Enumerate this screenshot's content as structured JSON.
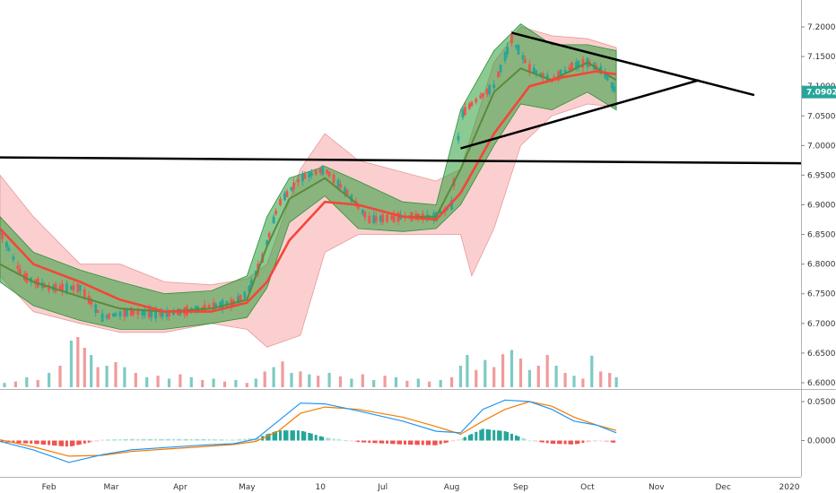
{
  "chart_data": [
    {
      "type": "candlestick",
      "title": "",
      "yaxis": {
        "ticks": [
          "7.2000",
          "7.1500",
          "7.1000",
          "7.0500",
          "7.0000",
          "6.9500",
          "6.9000",
          "6.8500",
          "6.8000",
          "6.7500",
          "6.7000",
          "6.6500",
          "6.6000"
        ],
        "ylim": [
          6.59,
          7.225
        ]
      },
      "xaxis": {
        "ticks": [
          "Feb",
          "Mar",
          "Apr",
          "May",
          "10",
          "Jul",
          "Aug",
          "Sep",
          "Oct",
          "Nov",
          "Dec",
          "2020"
        ],
        "range": [
          "2019-01-10",
          "2020-01-05"
        ]
      },
      "current_price": {
        "label": "7.0902",
        "value": 7.0902,
        "color": "#26a69a"
      },
      "price_path": [
        [
          "2019-01-10",
          6.855
        ],
        [
          "2019-01-20",
          6.78
        ],
        [
          "2019-02-01",
          6.76
        ],
        [
          "2019-02-15",
          6.76
        ],
        [
          "2019-02-25",
          6.71
        ],
        [
          "2019-03-10",
          6.72
        ],
        [
          "2019-03-25",
          6.715
        ],
        [
          "2019-04-10",
          6.725
        ],
        [
          "2019-04-25",
          6.735
        ],
        [
          "2019-05-01",
          6.75
        ],
        [
          "2019-05-08",
          6.81
        ],
        [
          "2019-05-15",
          6.9
        ],
        [
          "2019-05-25",
          6.945
        ],
        [
          "2019-06-05",
          6.96
        ],
        [
          "2019-06-15",
          6.92
        ],
        [
          "2019-06-25",
          6.875
        ],
        [
          "2019-07-10",
          6.88
        ],
        [
          "2019-07-25",
          6.88
        ],
        [
          "2019-08-01",
          6.9
        ],
        [
          "2019-08-05",
          7.05
        ],
        [
          "2019-08-10",
          7.07
        ],
        [
          "2019-08-20",
          7.1
        ],
        [
          "2019-08-28",
          7.18
        ],
        [
          "2019-09-05",
          7.13
        ],
        [
          "2019-09-15",
          7.11
        ],
        [
          "2019-09-25",
          7.135
        ],
        [
          "2019-10-01",
          7.14
        ],
        [
          "2019-10-08",
          7.125
        ],
        [
          "2019-10-14",
          7.09
        ]
      ],
      "sma_red": [
        [
          "2019-01-10",
          6.86
        ],
        [
          "2019-01-25",
          6.8
        ],
        [
          "2019-02-15",
          6.77
        ],
        [
          "2019-03-05",
          6.74
        ],
        [
          "2019-03-25",
          6.72
        ],
        [
          "2019-04-15",
          6.72
        ],
        [
          "2019-05-01",
          6.735
        ],
        [
          "2019-05-10",
          6.77
        ],
        [
          "2019-05-20",
          6.84
        ],
        [
          "2019-06-05",
          6.905
        ],
        [
          "2019-06-20",
          6.9
        ],
        [
          "2019-07-10",
          6.88
        ],
        [
          "2019-07-25",
          6.875
        ],
        [
          "2019-08-05",
          6.92
        ],
        [
          "2019-08-20",
          7.02
        ],
        [
          "2019-09-05",
          7.1
        ],
        [
          "2019-09-20",
          7.115
        ],
        [
          "2019-10-05",
          7.125
        ],
        [
          "2019-10-14",
          7.12
        ]
      ],
      "ema_green": [
        [
          "2019-01-10",
          6.8
        ],
        [
          "2019-01-25",
          6.77
        ],
        [
          "2019-02-15",
          6.745
        ],
        [
          "2019-03-05",
          6.725
        ],
        [
          "2019-03-25",
          6.72
        ],
        [
          "2019-04-15",
          6.725
        ],
        [
          "2019-05-01",
          6.74
        ],
        [
          "2019-05-10",
          6.83
        ],
        [
          "2019-05-20",
          6.91
        ],
        [
          "2019-06-05",
          6.945
        ],
        [
          "2019-06-20",
          6.9
        ],
        [
          "2019-07-10",
          6.88
        ],
        [
          "2019-07-25",
          6.88
        ],
        [
          "2019-08-05",
          6.96
        ],
        [
          "2019-08-20",
          7.09
        ],
        [
          "2019-09-01",
          7.13
        ],
        [
          "2019-09-15",
          7.11
        ],
        [
          "2019-10-01",
          7.14
        ],
        [
          "2019-10-14",
          7.11
        ]
      ],
      "bb_green_upper": [
        [
          "2019-01-10",
          6.88
        ],
        [
          "2019-01-25",
          6.82
        ],
        [
          "2019-02-15",
          6.79
        ],
        [
          "2019-03-05",
          6.77
        ],
        [
          "2019-03-25",
          6.75
        ],
        [
          "2019-04-15",
          6.755
        ],
        [
          "2019-05-01",
          6.78
        ],
        [
          "2019-05-10",
          6.88
        ],
        [
          "2019-05-20",
          6.945
        ],
        [
          "2019-06-05",
          6.965
        ],
        [
          "2019-06-20",
          6.94
        ],
        [
          "2019-07-10",
          6.905
        ],
        [
          "2019-07-25",
          6.9
        ],
        [
          "2019-08-05",
          7.06
        ],
        [
          "2019-08-20",
          7.16
        ],
        [
          "2019-09-01",
          7.205
        ],
        [
          "2019-09-15",
          7.17
        ],
        [
          "2019-10-01",
          7.17
        ],
        [
          "2019-10-14",
          7.16
        ]
      ],
      "bb_green_lower": [
        [
          "2019-01-10",
          6.77
        ],
        [
          "2019-01-25",
          6.73
        ],
        [
          "2019-02-15",
          6.705
        ],
        [
          "2019-03-05",
          6.69
        ],
        [
          "2019-03-25",
          6.69
        ],
        [
          "2019-04-15",
          6.7
        ],
        [
          "2019-05-01",
          6.71
        ],
        [
          "2019-05-10",
          6.76
        ],
        [
          "2019-05-20",
          6.87
        ],
        [
          "2019-06-05",
          6.915
        ],
        [
          "2019-06-20",
          6.86
        ],
        [
          "2019-07-10",
          6.855
        ],
        [
          "2019-07-25",
          6.86
        ],
        [
          "2019-08-05",
          6.9
        ],
        [
          "2019-08-20",
          7.0
        ],
        [
          "2019-09-01",
          7.07
        ],
        [
          "2019-09-15",
          7.06
        ],
        [
          "2019-10-01",
          7.09
        ],
        [
          "2019-10-14",
          7.06
        ]
      ],
      "bb_red_upper": [
        [
          "2019-01-10",
          6.95
        ],
        [
          "2019-01-25",
          6.88
        ],
        [
          "2019-02-15",
          6.8
        ],
        [
          "2019-03-05",
          6.8
        ],
        [
          "2019-03-25",
          6.77
        ],
        [
          "2019-04-15",
          6.765
        ],
        [
          "2019-05-01",
          6.775
        ],
        [
          "2019-05-10",
          6.8
        ],
        [
          "2019-05-25",
          6.96
        ],
        [
          "2019-06-05",
          7.02
        ],
        [
          "2019-06-20",
          6.975
        ],
        [
          "2019-07-10",
          6.955
        ],
        [
          "2019-07-25",
          6.94
        ],
        [
          "2019-08-05",
          6.96
        ],
        [
          "2019-08-20",
          7.14
        ],
        [
          "2019-09-01",
          7.2
        ],
        [
          "2019-09-15",
          7.185
        ],
        [
          "2019-10-01",
          7.18
        ],
        [
          "2019-10-14",
          7.165
        ]
      ],
      "bb_red_lower": [
        [
          "2019-01-10",
          6.78
        ],
        [
          "2019-01-25",
          6.72
        ],
        [
          "2019-02-15",
          6.7
        ],
        [
          "2019-03-05",
          6.685
        ],
        [
          "2019-03-25",
          6.685
        ],
        [
          "2019-04-15",
          6.7
        ],
        [
          "2019-05-01",
          6.69
        ],
        [
          "2019-05-10",
          6.66
        ],
        [
          "2019-05-25",
          6.68
        ],
        [
          "2019-06-05",
          6.82
        ],
        [
          "2019-06-20",
          6.85
        ],
        [
          "2019-07-10",
          6.85
        ],
        [
          "2019-07-25",
          6.85
        ],
        [
          "2019-08-05",
          6.85
        ],
        [
          "2019-08-10",
          6.78
        ],
        [
          "2019-08-20",
          6.86
        ],
        [
          "2019-09-01",
          7.0
        ],
        [
          "2019-09-15",
          7.05
        ],
        [
          "2019-10-01",
          7.07
        ],
        [
          "2019-10-14",
          7.065
        ]
      ],
      "trendlines": [
        {
          "name": "horizontal-support",
          "points": [
            [
              "2019-01-10",
              6.98
            ],
            [
              "2020-01-05",
              6.97
            ]
          ]
        },
        {
          "name": "upper-triangle",
          "points": [
            [
              "2019-08-28",
              7.19
            ],
            [
              "2019-12-15",
              7.085
            ]
          ]
        },
        {
          "name": "lower-triangle",
          "points": [
            [
              "2019-08-05",
              6.995
            ],
            [
              "2019-11-20",
              7.11
            ]
          ]
        }
      ],
      "volume": [
        [
          "2019-01-12",
          0.06,
          "g"
        ],
        [
          "2019-01-17",
          0.08,
          "r"
        ],
        [
          "2019-01-22",
          0.14,
          "g"
        ],
        [
          "2019-01-27",
          0.1,
          "r"
        ],
        [
          "2019-02-01",
          0.2,
          "g"
        ],
        [
          "2019-02-06",
          0.3,
          "r"
        ],
        [
          "2019-02-11",
          0.65,
          "g"
        ],
        [
          "2019-02-14",
          0.7,
          "r"
        ],
        [
          "2019-02-17",
          0.55,
          "r"
        ],
        [
          "2019-02-20",
          0.45,
          "g"
        ],
        [
          "2019-02-23",
          0.28,
          "r"
        ],
        [
          "2019-02-27",
          0.3,
          "g"
        ],
        [
          "2019-03-03",
          0.35,
          "r"
        ],
        [
          "2019-03-07",
          0.28,
          "g"
        ],
        [
          "2019-03-12",
          0.2,
          "r"
        ],
        [
          "2019-03-17",
          0.14,
          "g"
        ],
        [
          "2019-03-22",
          0.16,
          "r"
        ],
        [
          "2019-03-27",
          0.12,
          "g"
        ],
        [
          "2019-04-01",
          0.18,
          "r"
        ],
        [
          "2019-04-06",
          0.14,
          "g"
        ],
        [
          "2019-04-11",
          0.1,
          "r"
        ],
        [
          "2019-04-16",
          0.12,
          "g"
        ],
        [
          "2019-04-21",
          0.08,
          "r"
        ],
        [
          "2019-04-26",
          0.1,
          "g"
        ],
        [
          "2019-05-01",
          0.06,
          "r"
        ],
        [
          "2019-05-05",
          0.12,
          "g"
        ],
        [
          "2019-05-09",
          0.22,
          "r"
        ],
        [
          "2019-05-13",
          0.28,
          "g"
        ],
        [
          "2019-05-17",
          0.36,
          "r"
        ],
        [
          "2019-05-21",
          0.2,
          "g"
        ],
        [
          "2019-05-25",
          0.22,
          "r"
        ],
        [
          "2019-05-29",
          0.18,
          "g"
        ],
        [
          "2019-06-02",
          0.16,
          "r"
        ],
        [
          "2019-06-07",
          0.2,
          "g"
        ],
        [
          "2019-06-12",
          0.15,
          "r"
        ],
        [
          "2019-06-17",
          0.12,
          "g"
        ],
        [
          "2019-06-22",
          0.18,
          "r"
        ],
        [
          "2019-06-27",
          0.1,
          "g"
        ],
        [
          "2019-07-02",
          0.16,
          "r"
        ],
        [
          "2019-07-07",
          0.14,
          "g"
        ],
        [
          "2019-07-12",
          0.09,
          "r"
        ],
        [
          "2019-07-17",
          0.12,
          "g"
        ],
        [
          "2019-07-22",
          0.08,
          "r"
        ],
        [
          "2019-07-27",
          0.1,
          "g"
        ],
        [
          "2019-08-01",
          0.14,
          "r"
        ],
        [
          "2019-08-05",
          0.3,
          "g"
        ],
        [
          "2019-08-08",
          0.45,
          "g"
        ],
        [
          "2019-08-12",
          0.24,
          "r"
        ],
        [
          "2019-08-16",
          0.38,
          "g"
        ],
        [
          "2019-08-20",
          0.28,
          "r"
        ],
        [
          "2019-08-24",
          0.46,
          "r"
        ],
        [
          "2019-08-28",
          0.52,
          "g"
        ],
        [
          "2019-09-01",
          0.4,
          "r"
        ],
        [
          "2019-09-05",
          0.24,
          "g"
        ],
        [
          "2019-09-09",
          0.3,
          "r"
        ],
        [
          "2019-09-13",
          0.45,
          "r"
        ],
        [
          "2019-09-17",
          0.3,
          "g"
        ],
        [
          "2019-09-21",
          0.2,
          "r"
        ],
        [
          "2019-09-25",
          0.16,
          "g"
        ],
        [
          "2019-09-29",
          0.12,
          "r"
        ],
        [
          "2019-10-03",
          0.44,
          "g"
        ],
        [
          "2019-10-07",
          0.22,
          "r"
        ],
        [
          "2019-10-11",
          0.2,
          "r"
        ],
        [
          "2019-10-14",
          0.14,
          "g"
        ]
      ]
    },
    {
      "type": "macd",
      "yaxis": {
        "ticks": [
          "0.0500",
          "0.0000"
        ],
        "ylim": [
          -0.032,
          0.058
        ]
      },
      "macd_line": [
        [
          "2019-01-10",
          -0.001
        ],
        [
          "2019-01-25",
          -0.012
        ],
        [
          "2019-02-10",
          -0.028
        ],
        [
          "2019-02-25",
          -0.018
        ],
        [
          "2019-03-10",
          -0.012
        ],
        [
          "2019-03-25",
          -0.009
        ],
        [
          "2019-04-10",
          -0.006
        ],
        [
          "2019-04-25",
          -0.004
        ],
        [
          "2019-05-05",
          0.002
        ],
        [
          "2019-05-15",
          0.025
        ],
        [
          "2019-05-25",
          0.048
        ],
        [
          "2019-06-05",
          0.047
        ],
        [
          "2019-06-20",
          0.038
        ],
        [
          "2019-07-10",
          0.025
        ],
        [
          "2019-07-25",
          0.012
        ],
        [
          "2019-08-05",
          0.01
        ],
        [
          "2019-08-15",
          0.04
        ],
        [
          "2019-08-25",
          0.052
        ],
        [
          "2019-09-05",
          0.05
        ],
        [
          "2019-09-15",
          0.04
        ],
        [
          "2019-09-25",
          0.025
        ],
        [
          "2019-10-05",
          0.02
        ],
        [
          "2019-10-14",
          0.01
        ]
      ],
      "signal_line": [
        [
          "2019-01-10",
          0.001
        ],
        [
          "2019-01-25",
          -0.008
        ],
        [
          "2019-02-10",
          -0.02
        ],
        [
          "2019-02-25",
          -0.019
        ],
        [
          "2019-03-10",
          -0.014
        ],
        [
          "2019-03-25",
          -0.011
        ],
        [
          "2019-04-10",
          -0.008
        ],
        [
          "2019-04-25",
          -0.005
        ],
        [
          "2019-05-05",
          -0.001
        ],
        [
          "2019-05-15",
          0.012
        ],
        [
          "2019-05-25",
          0.035
        ],
        [
          "2019-06-05",
          0.043
        ],
        [
          "2019-06-20",
          0.04
        ],
        [
          "2019-07-10",
          0.03
        ],
        [
          "2019-07-25",
          0.018
        ],
        [
          "2019-08-05",
          0.008
        ],
        [
          "2019-08-15",
          0.025
        ],
        [
          "2019-08-25",
          0.04
        ],
        [
          "2019-09-05",
          0.05
        ],
        [
          "2019-09-15",
          0.044
        ],
        [
          "2019-09-25",
          0.03
        ],
        [
          "2019-10-05",
          0.02
        ],
        [
          "2019-10-14",
          0.013
        ]
      ]
    }
  ]
}
